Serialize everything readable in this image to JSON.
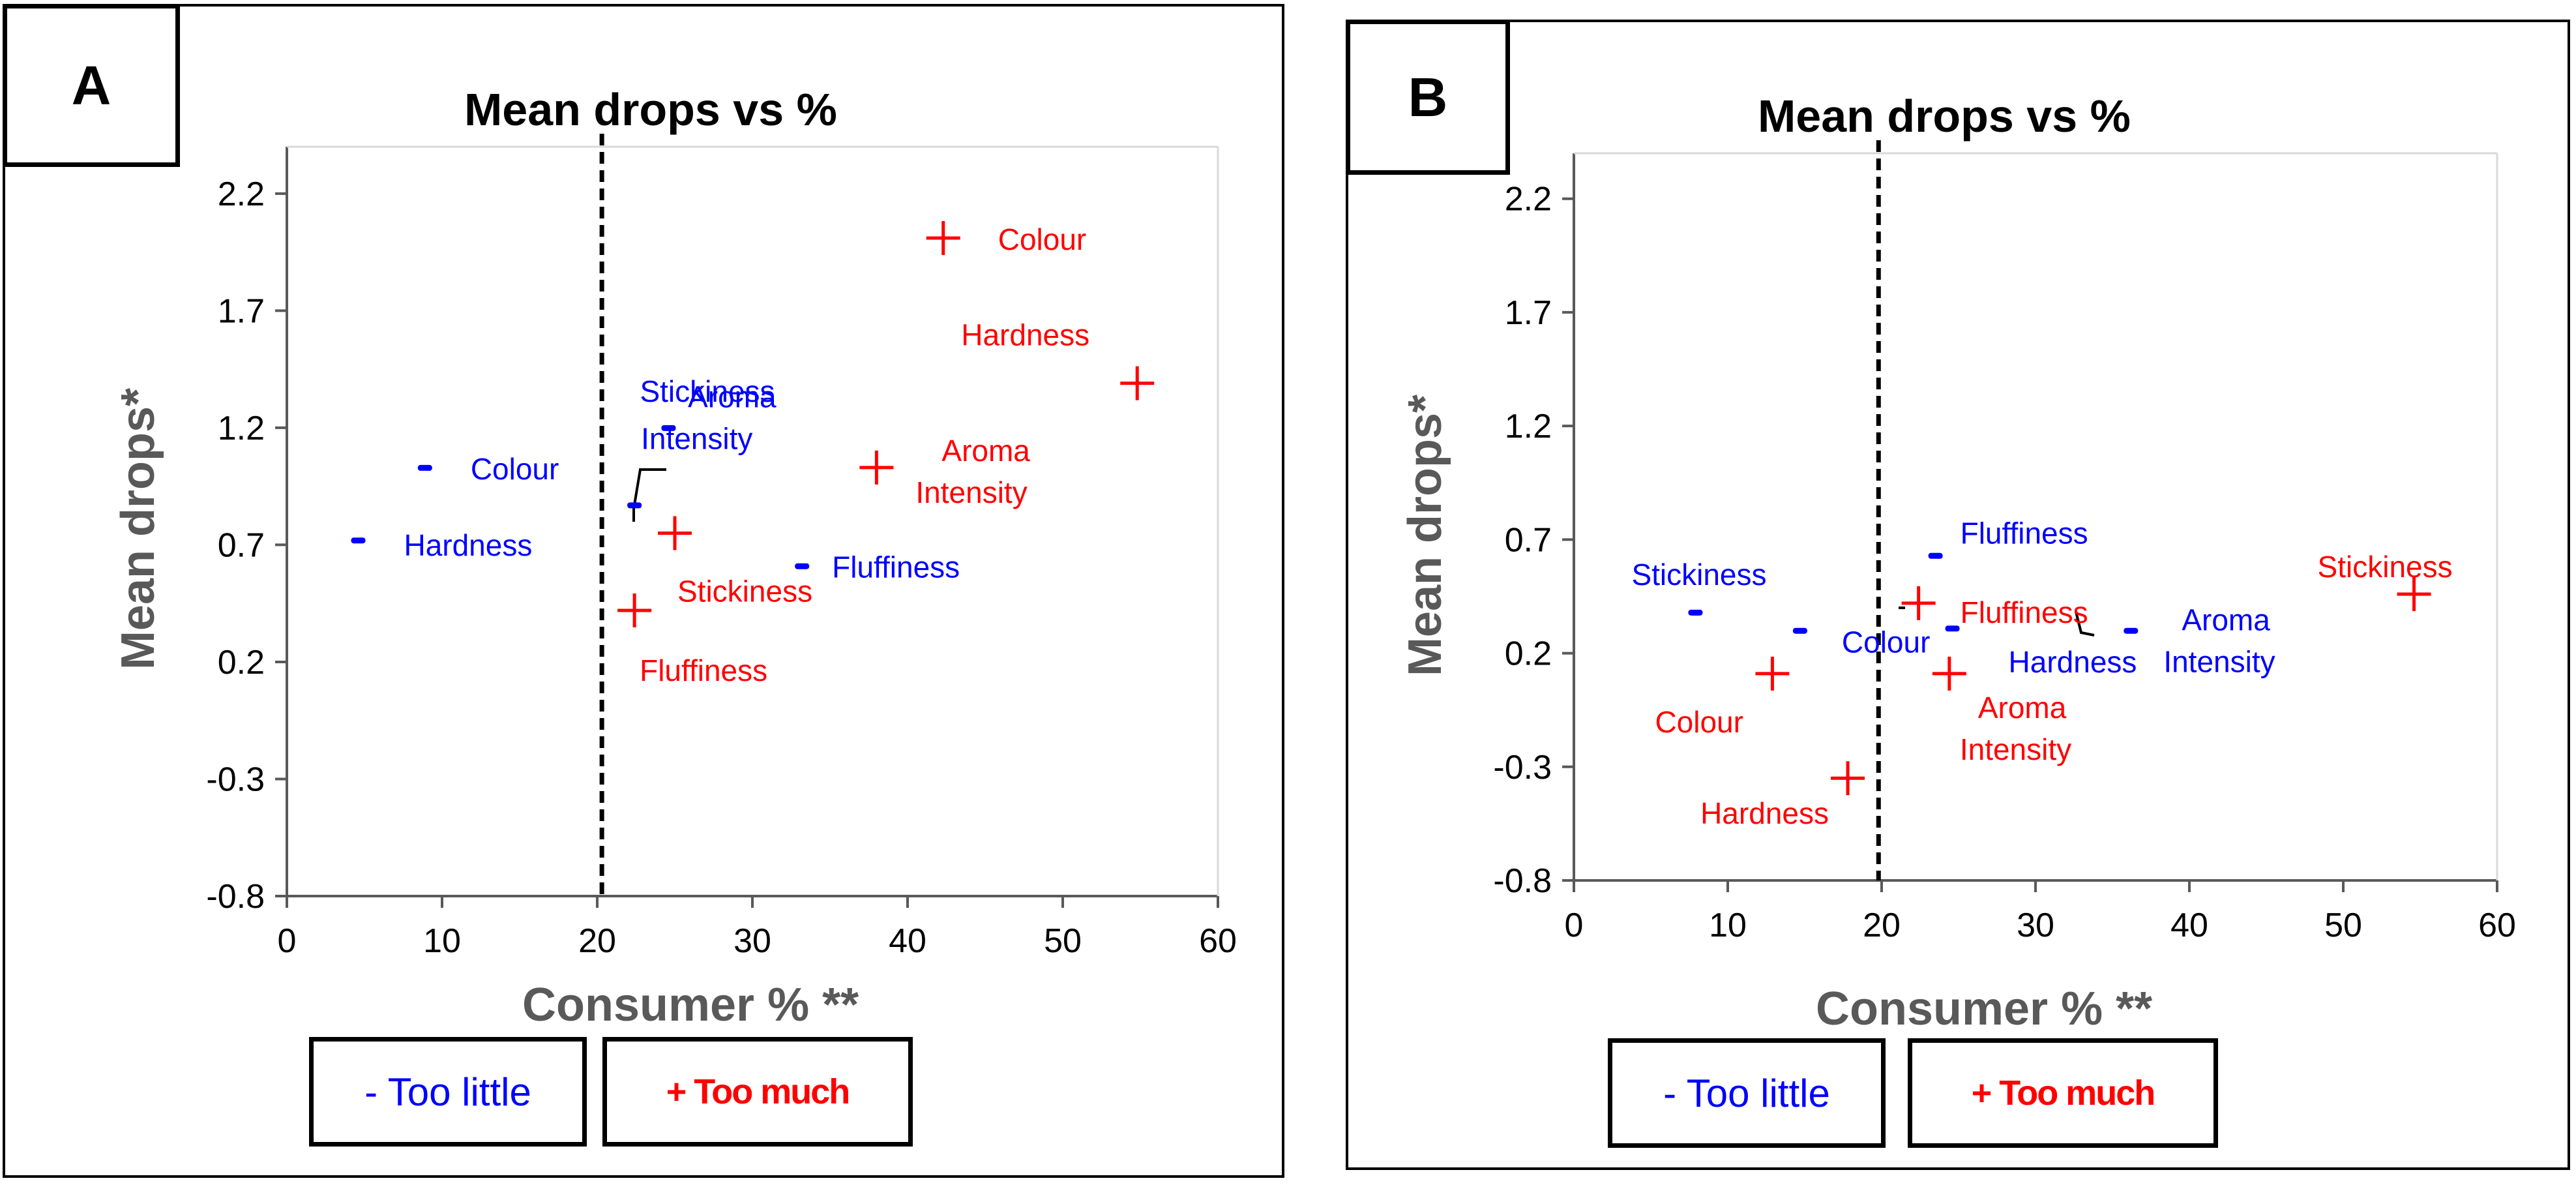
{
  "colors": {
    "too_little": "#0000ff",
    "too_much": "#ff0000",
    "axis": "#595959",
    "cutoff": "#000000"
  },
  "panels": [
    {
      "label": "A",
      "title": "Mean drops vs %",
      "xlabel": "Consumer % **",
      "ylabel": "Mean drops*",
      "legend": {
        "too_little": "- Too little",
        "too_much": "+ Too much"
      }
    },
    {
      "label": "B",
      "title": "Mean drops vs %",
      "xlabel": "Consumer % **",
      "ylabel": "Mean drops*",
      "legend": {
        "too_little": "- Too little",
        "too_much": "+ Too much"
      }
    }
  ],
  "chart_data": [
    {
      "type": "scatter",
      "title": "Mean drops vs %",
      "xlabel": "Consumer % **",
      "ylabel": "Mean drops*",
      "xlim": [
        0,
        60
      ],
      "ylim": [
        -0.8,
        2.4
      ],
      "xticks": [
        "0",
        "10",
        "20",
        "30",
        "40",
        "50",
        "60"
      ],
      "yticks": [
        "2.2",
        "1.7",
        "1.2",
        "0.7",
        "0.2",
        "-0.3",
        "-0.8"
      ],
      "cutoff_x": 20.3,
      "series": [
        {
          "name": "- Too little",
          "marker": "-",
          "points": [
            {
              "label": "Colour",
              "x": 8.9,
              "y": 1.03
            },
            {
              "label": "Hardness",
              "x": 4.6,
              "y": 0.72
            },
            {
              "label": "Stickiness",
              "x": 24.6,
              "y": 1.2
            },
            {
              "label": "Aroma Intensity",
              "x": 22.4,
              "y": 0.87
            },
            {
              "label": "Fluffiness",
              "x": 33.2,
              "y": 0.61
            }
          ]
        },
        {
          "name": "+ Too much",
          "marker": "+",
          "points": [
            {
              "label": "Colour",
              "x": 42.3,
              "y": 2.01
            },
            {
              "label": "Hardness",
              "x": 54.8,
              "y": 1.39
            },
            {
              "label": "Aroma Intensity",
              "x": 38.0,
              "y": 1.03
            },
            {
              "label": "Stickiness",
              "x": 25.0,
              "y": 0.75
            },
            {
              "label": "Fluffiness",
              "x": 22.4,
              "y": 0.42
            }
          ]
        }
      ]
    },
    {
      "type": "scatter",
      "title": "Mean drops vs %",
      "xlabel": "Consumer % **",
      "ylabel": "Mean drops*",
      "xlim": [
        0,
        60
      ],
      "ylim": [
        -0.8,
        2.4
      ],
      "xticks": [
        "0",
        "10",
        "20",
        "30",
        "40",
        "50",
        "60"
      ],
      "yticks": [
        "2.2",
        "1.7",
        "1.2",
        "0.7",
        "0.2",
        "-0.3",
        "-0.8"
      ],
      "cutoff_x": 19.8,
      "series": [
        {
          "name": "- Too little",
          "marker": "-",
          "points": [
            {
              "label": "Stickiness",
              "x": 7.9,
              "y": 0.38
            },
            {
              "label": "Colour",
              "x": 14.7,
              "y": 0.3
            },
            {
              "label": "Fluffiness",
              "x": 23.5,
              "y": 0.63
            },
            {
              "label": "Hardness",
              "x": 24.6,
              "y": 0.31
            },
            {
              "label": "Aroma Intensity",
              "x": 36.2,
              "y": 0.3
            }
          ]
        },
        {
          "name": "+ Too much",
          "marker": "+",
          "points": [
            {
              "label": "Stickiness",
              "x": 54.6,
              "y": 0.46
            },
            {
              "label": "Fluffiness",
              "x": 22.4,
              "y": 0.42
            },
            {
              "label": "Colour",
              "x": 12.9,
              "y": 0.11
            },
            {
              "label": "Aroma Intensity",
              "x": 24.4,
              "y": 0.11
            },
            {
              "label": "Hardness",
              "x": 17.8,
              "y": -0.35
            }
          ]
        }
      ]
    }
  ]
}
